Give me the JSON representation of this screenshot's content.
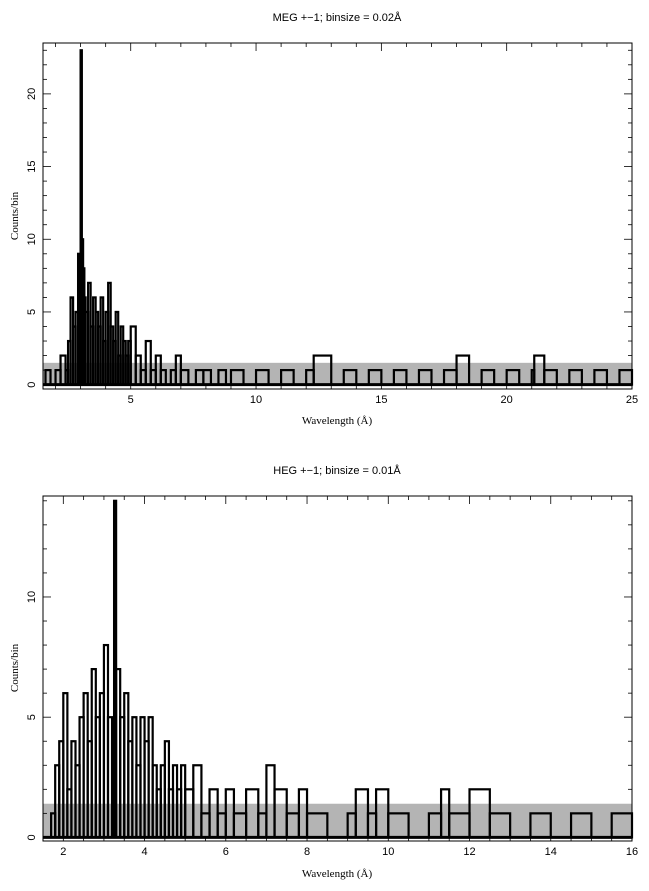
{
  "chart_data": [
    {
      "type": "line",
      "title": "MEG +−1; binsize = 0.02Å",
      "xlabel": "Wavelength (Å)",
      "ylabel": "Counts/bin",
      "xlim": [
        1.5,
        25
      ],
      "ylim": [
        -0.3,
        23.5
      ],
      "xticks": [
        5,
        10,
        15,
        20,
        25
      ],
      "yticks": [
        0,
        5,
        10,
        15,
        20
      ],
      "xticklabels": [
        "5",
        "10",
        "15",
        "20",
        "25"
      ],
      "yticklabels": [
        "0",
        "5",
        "10",
        "15",
        "20"
      ],
      "background_band": [
        0,
        1.5
      ],
      "binsize": 0.02,
      "grid": false,
      "series": [
        {
          "style": "thick black step histogram (binned counts)",
          "x": [
            1.6,
            1.8,
            2.0,
            2.2,
            2.4,
            2.5,
            2.6,
            2.7,
            2.8,
            2.9,
            2.95,
            3.0,
            3.05,
            3.1,
            3.15,
            3.2,
            3.3,
            3.4,
            3.5,
            3.6,
            3.7,
            3.8,
            3.9,
            4.0,
            4.1,
            4.2,
            4.3,
            4.4,
            4.5,
            4.6,
            4.7,
            4.8,
            4.9,
            5.0,
            5.2,
            5.4,
            5.6,
            5.8,
            6.0,
            6.2,
            6.4,
            6.6,
            6.8,
            7.0,
            7.3,
            7.6,
            7.9,
            8.2,
            8.5,
            8.8,
            9.0,
            9.5,
            10.0,
            10.5,
            11.0,
            11.5,
            12.0,
            12.3,
            13.0,
            13.5,
            14.0,
            14.5,
            15.0,
            15.5,
            16.0,
            16.5,
            17.0,
            17.5,
            18.0,
            18.5,
            19.0,
            19.5,
            20.0,
            20.5,
            21.0,
            21.1,
            21.5,
            22.0,
            22.5,
            23.0,
            23.5,
            24.0,
            24.5,
            25.0
          ],
          "y": [
            1,
            0,
            1,
            2,
            1,
            3,
            6,
            4,
            5,
            9,
            7,
            23,
            10,
            8,
            6,
            5,
            7,
            4,
            6,
            5,
            4,
            6,
            3,
            5,
            7,
            4,
            3,
            5,
            2,
            4,
            3,
            2,
            3,
            4,
            2,
            1,
            3,
            1,
            2,
            1,
            0,
            1,
            2,
            1,
            0,
            1,
            1,
            0,
            1,
            0,
            1,
            0,
            1,
            0,
            1,
            0,
            1,
            2,
            0,
            1,
            0,
            1,
            0,
            1,
            0,
            1,
            0,
            1,
            2,
            0,
            1,
            0,
            1,
            0,
            1,
            2,
            1,
            0,
            1,
            0,
            1,
            0,
            1,
            0
          ]
        }
      ]
    },
    {
      "type": "line",
      "title": "HEG +−1; binsize = 0.01Å",
      "xlabel": "Wavelength (Å)",
      "ylabel": "Counts/bin",
      "xlim": [
        1.5,
        16
      ],
      "ylim": [
        -0.15,
        14.2
      ],
      "xticks": [
        2,
        4,
        6,
        8,
        10,
        12,
        14,
        16
      ],
      "yticks": [
        0,
        5,
        10
      ],
      "xticklabels": [
        "2",
        "4",
        "6",
        "8",
        "10",
        "12",
        "14",
        "16"
      ],
      "yticklabels": [
        "0",
        "5",
        "10"
      ],
      "background_band": [
        0,
        1.4
      ],
      "binsize": 0.01,
      "grid": false,
      "series": [
        {
          "style": "thick black step histogram (binned counts)",
          "x": [
            1.5,
            1.7,
            1.8,
            1.9,
            2.0,
            2.1,
            2.2,
            2.3,
            2.4,
            2.5,
            2.6,
            2.7,
            2.8,
            2.9,
            3.0,
            3.1,
            3.2,
            3.25,
            3.3,
            3.4,
            3.5,
            3.6,
            3.7,
            3.8,
            3.9,
            4.0,
            4.1,
            4.2,
            4.3,
            4.4,
            4.5,
            4.6,
            4.7,
            4.8,
            4.9,
            5.0,
            5.2,
            5.4,
            5.6,
            5.8,
            6.0,
            6.2,
            6.5,
            6.8,
            7.0,
            7.2,
            7.5,
            7.8,
            8.0,
            8.5,
            9.0,
            9.2,
            9.5,
            9.7,
            10.0,
            10.5,
            11.0,
            11.3,
            11.5,
            12.0,
            12.5,
            13.0,
            13.5,
            14.0,
            14.5,
            15.0,
            15.5,
            16.0
          ],
          "y": [
            0,
            1,
            3,
            4,
            6,
            2,
            4,
            3,
            5,
            6,
            4,
            7,
            5,
            6,
            8,
            5,
            4,
            14,
            7,
            5,
            6,
            4,
            5,
            3,
            5,
            4,
            5,
            3,
            2,
            3,
            4,
            2,
            3,
            2,
            3,
            2,
            3,
            1,
            2,
            1,
            2,
            1,
            2,
            1,
            3,
            2,
            1,
            2,
            1,
            0,
            1,
            2,
            1,
            2,
            1,
            0,
            1,
            2,
            1,
            2,
            1,
            0,
            1,
            0,
            1,
            0,
            1,
            0
          ]
        }
      ]
    }
  ]
}
